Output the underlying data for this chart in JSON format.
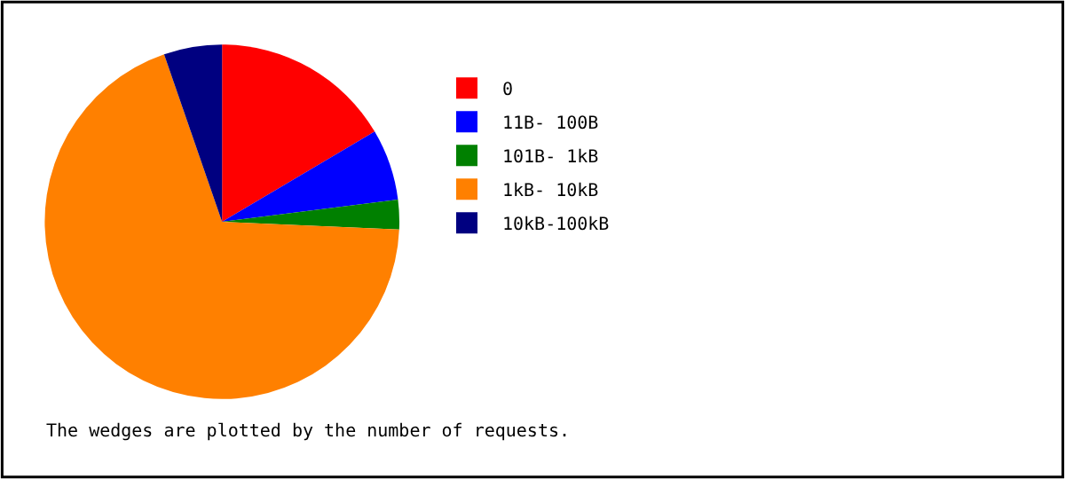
{
  "chart_data": {
    "type": "pie",
    "categories": [
      "0",
      "11B- 100B",
      "101B- 1kB",
      "1kB- 10kB",
      "10kB-100kB"
    ],
    "values": [
      16.5,
      6.5,
      2.7,
      69.0,
      5.3
    ],
    "colors": [
      "#ff0000",
      "#0000ff",
      "#008000",
      "#ff8000",
      "#000080"
    ],
    "legend": "right",
    "annotations": [
      "The wedges are plotted by the number of requests."
    ]
  }
}
